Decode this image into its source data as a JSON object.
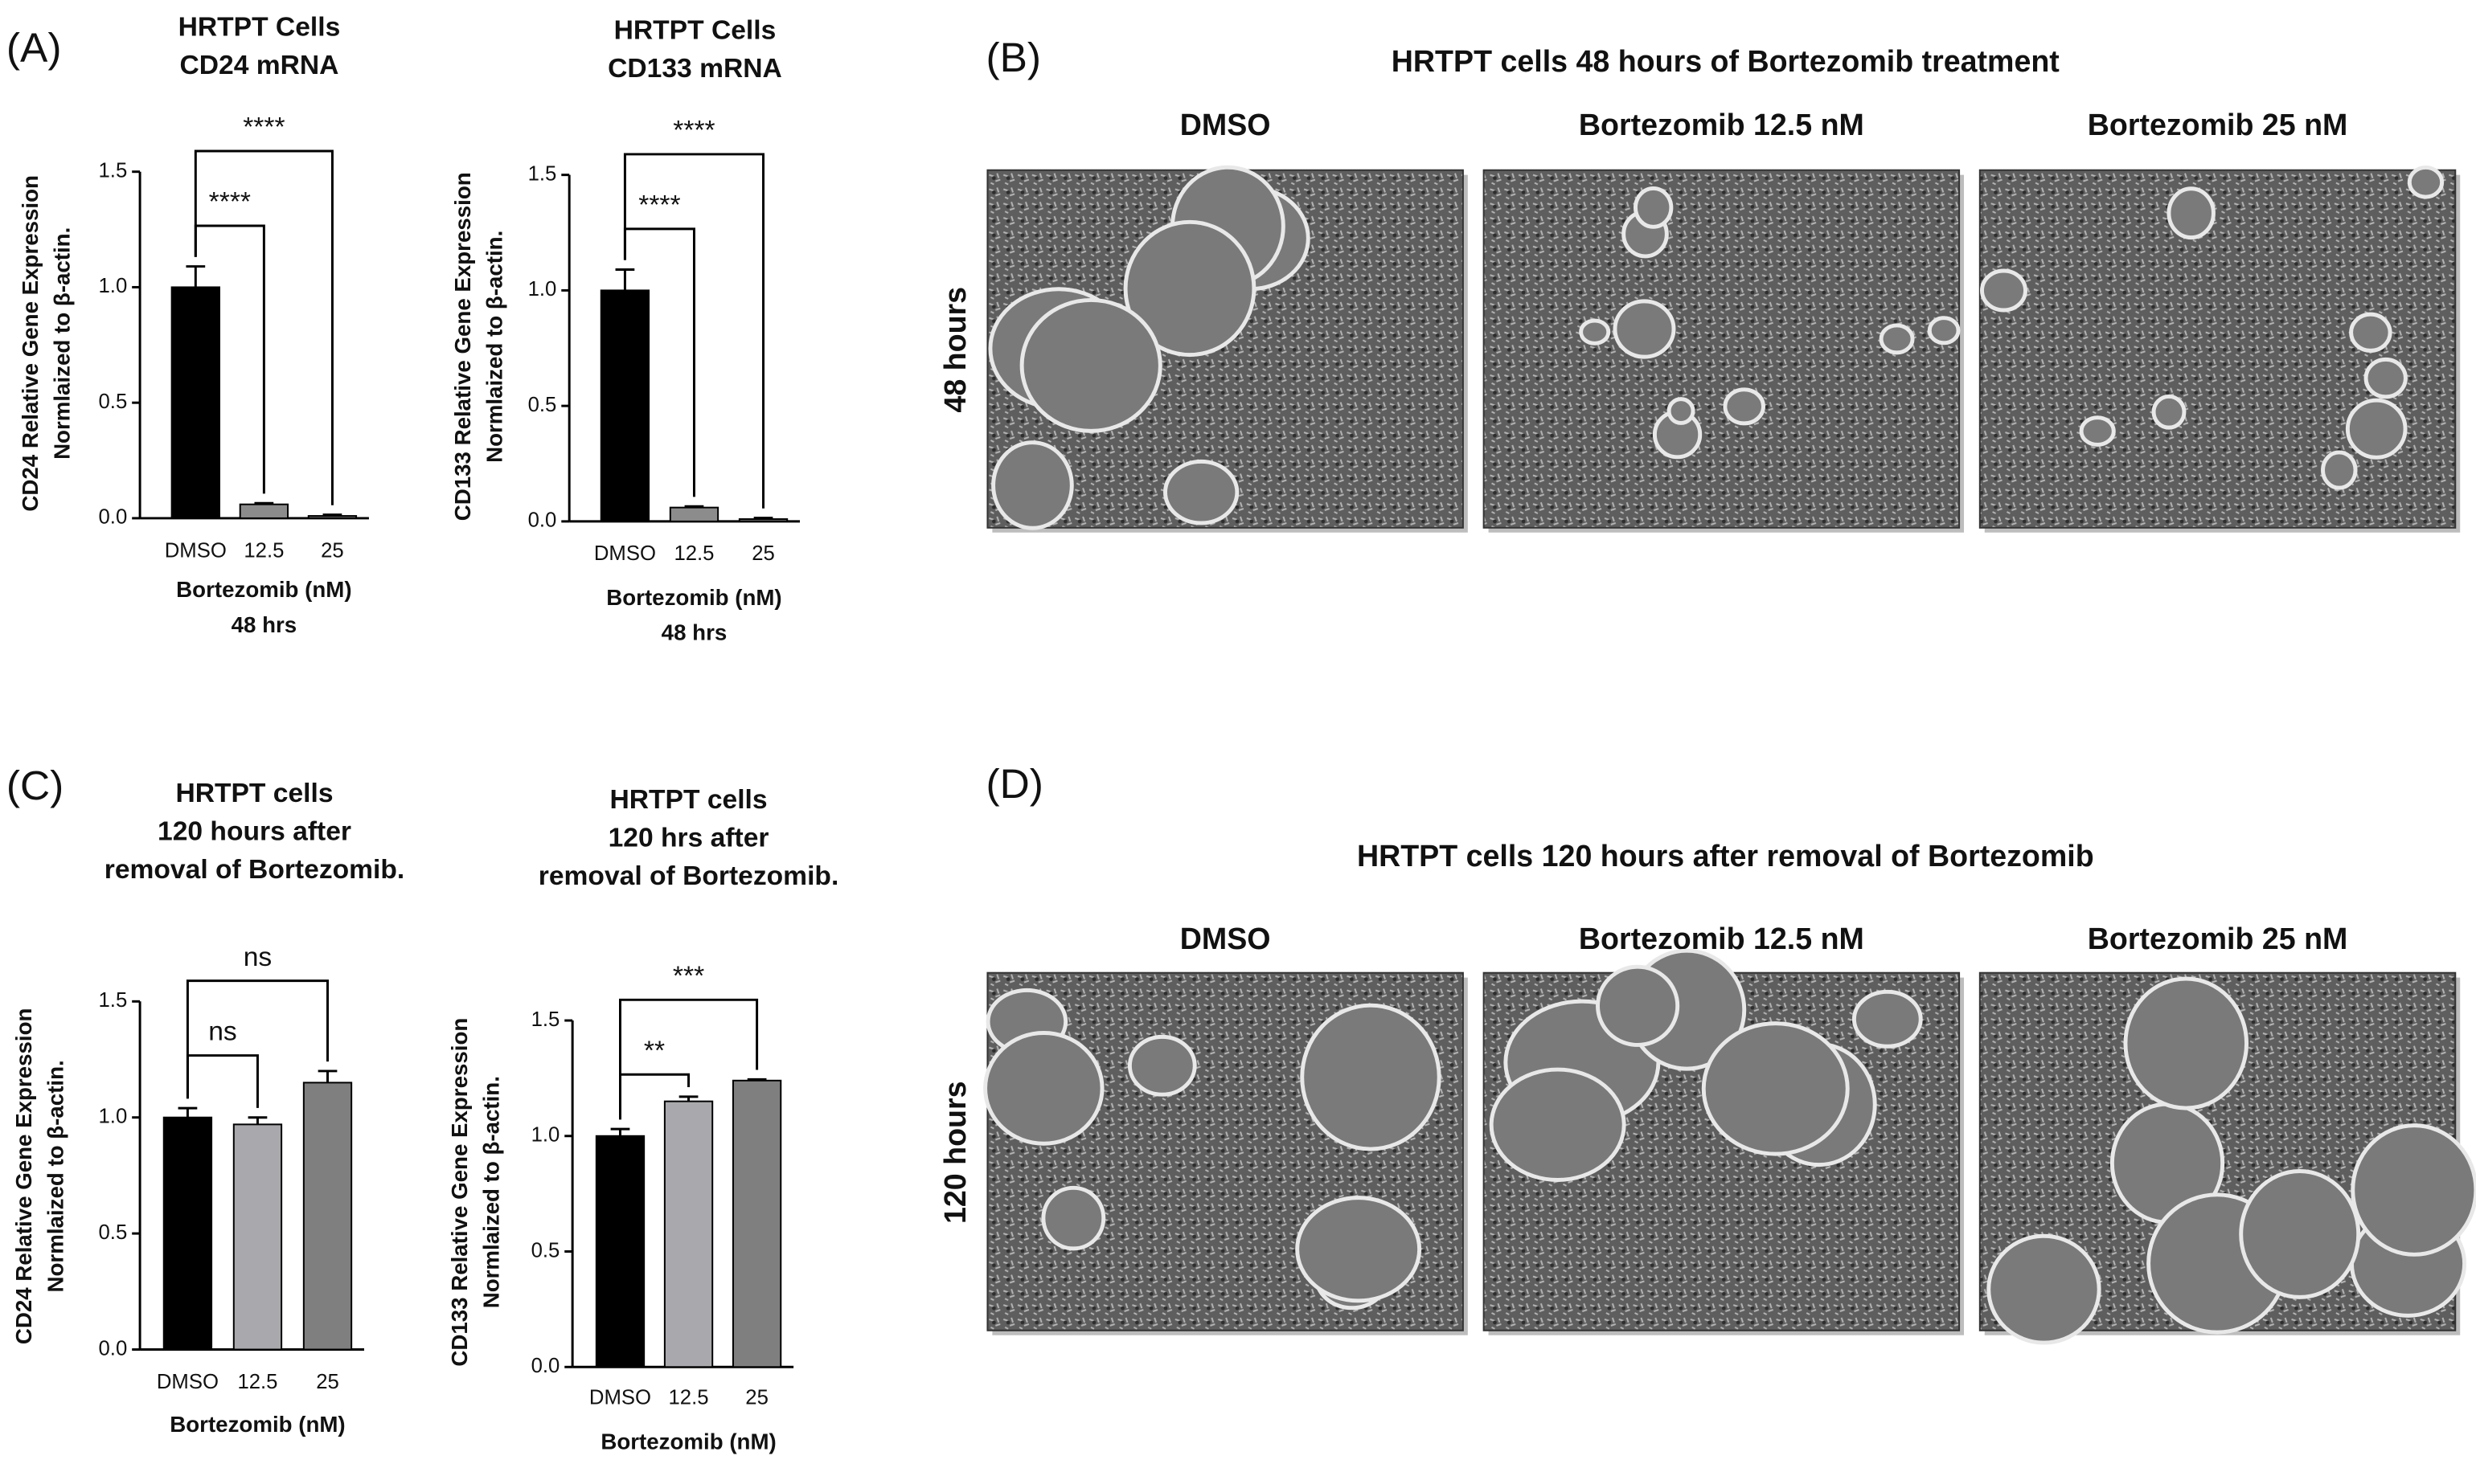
{
  "panel_labels": [
    "(A)",
    "(B)",
    "(C)",
    "(D)"
  ],
  "micrographs": [
    {
      "title": "HRTPT cells 48 hours of Bortezomib treatment",
      "columns": [
        "DMSO",
        "Bortezomib 12.5  nM",
        "Bortezomib 25 nM"
      ],
      "row_label": "48 hours"
    },
    {
      "title": "HRTPT cells 120 hours after removal of Bortezomib",
      "columns": [
        "DMSO",
        "Bortezomib 12.5  nM",
        "Bortezomib 25 nM"
      ],
      "row_label": "120 hours"
    }
  ],
  "chart_data": [
    {
      "type": "bar",
      "title": [
        "HRTPT Cells",
        "CD24 mRNA"
      ],
      "y_label": [
        "CD24 Relative Gene Expression",
        "Normlaized to β-actin."
      ],
      "x_label": [
        "Bortezomib (nM)",
        "48 hrs"
      ],
      "categories": [
        "DMSO",
        "12.5",
        "25"
      ],
      "values": [
        1.0,
        0.06,
        0.01
      ],
      "errors": [
        0.09,
        0.005,
        0.005
      ],
      "colors": [
        "#000000",
        "#8c8c8c",
        "#6e6e6e"
      ],
      "ylim": [
        0,
        1.5
      ],
      "yticks": [
        {
          "value": 0,
          "label": "0.0"
        },
        0.5,
        {
          "value": 1,
          "label": "1.0"
        },
        1.5
      ],
      "significance": [
        {
          "pair": [
            "DMSO",
            "12.5"
          ],
          "label": "****"
        },
        {
          "pair": [
            "DMSO",
            "25"
          ],
          "label": "****"
        }
      ]
    },
    {
      "type": "bar",
      "title": [
        "HRTPT Cells",
        "CD133 mRNA"
      ],
      "y_label": [
        "CD133 Relative Gene Expression",
        "Normlaized to β-actin."
      ],
      "x_label": [
        "Bortezomib (nM)",
        "48 hrs"
      ],
      "categories": [
        "DMSO",
        "12.5",
        "25"
      ],
      "values": [
        1.0,
        0.06,
        0.01
      ],
      "errors": [
        0.09,
        0.005,
        0.005
      ],
      "colors": [
        "#000000",
        "#8c8c8c",
        "#6e6e6e"
      ],
      "ylim": [
        0,
        1.5
      ],
      "yticks": [
        {
          "value": 0,
          "label": "0.0"
        },
        0.5,
        {
          "value": 1,
          "label": "1.0"
        },
        1.5
      ],
      "significance": [
        {
          "pair": [
            "DMSO",
            "12.5"
          ],
          "label": "****"
        },
        {
          "pair": [
            "DMSO",
            "25"
          ],
          "label": "****"
        }
      ]
    },
    {
      "type": "bar",
      "title": [
        "HRTPT cells",
        "120 hours after",
        "removal of Bortezomib."
      ],
      "y_label": [
        "CD24 Relative Gene Expression",
        "Normlaized to β-actin."
      ],
      "x_label": [
        "Bortezomib (nM)"
      ],
      "categories": [
        "DMSO",
        "12.5",
        "25"
      ],
      "values": [
        1.0,
        0.97,
        1.15
      ],
      "errors": [
        0.04,
        0.03,
        0.05
      ],
      "colors": [
        "#000000",
        "#a9a9ad",
        "#7f7f7f"
      ],
      "ylim": [
        0,
        1.5
      ],
      "yticks": [
        {
          "value": 0,
          "label": "0.0"
        },
        0.5,
        {
          "value": 1,
          "label": "1.0"
        },
        1.5
      ],
      "significance": [
        {
          "pair": [
            "DMSO",
            "12.5"
          ],
          "label": "ns"
        },
        {
          "pair": [
            "DMSO",
            "25"
          ],
          "label": "ns"
        }
      ]
    },
    {
      "type": "bar",
      "title": [
        "HRTPT cells",
        "120 hrs after",
        "removal of Bortezomib."
      ],
      "y_label": [
        "CD133 Relative Gene Expression",
        "Normlaized to β-actin."
      ],
      "x_label": [
        "Bortezomib (nM)"
      ],
      "categories": [
        "DMSO",
        "12.5",
        "25"
      ],
      "values": [
        1.0,
        1.15,
        1.24
      ],
      "errors": [
        0.03,
        0.02,
        0.005
      ],
      "colors": [
        "#000000",
        "#a9a9ad",
        "#7f7f7f"
      ],
      "ylim": [
        0,
        1.5
      ],
      "yticks": [
        {
          "value": 0,
          "label": "0.0"
        },
        0.5,
        {
          "value": 1,
          "label": "1.0"
        },
        1.5
      ],
      "significance": [
        {
          "pair": [
            "DMSO",
            "12.5"
          ],
          "label": "**"
        },
        {
          "pair": [
            "DMSO",
            "25"
          ],
          "label": "***"
        }
      ]
    }
  ]
}
